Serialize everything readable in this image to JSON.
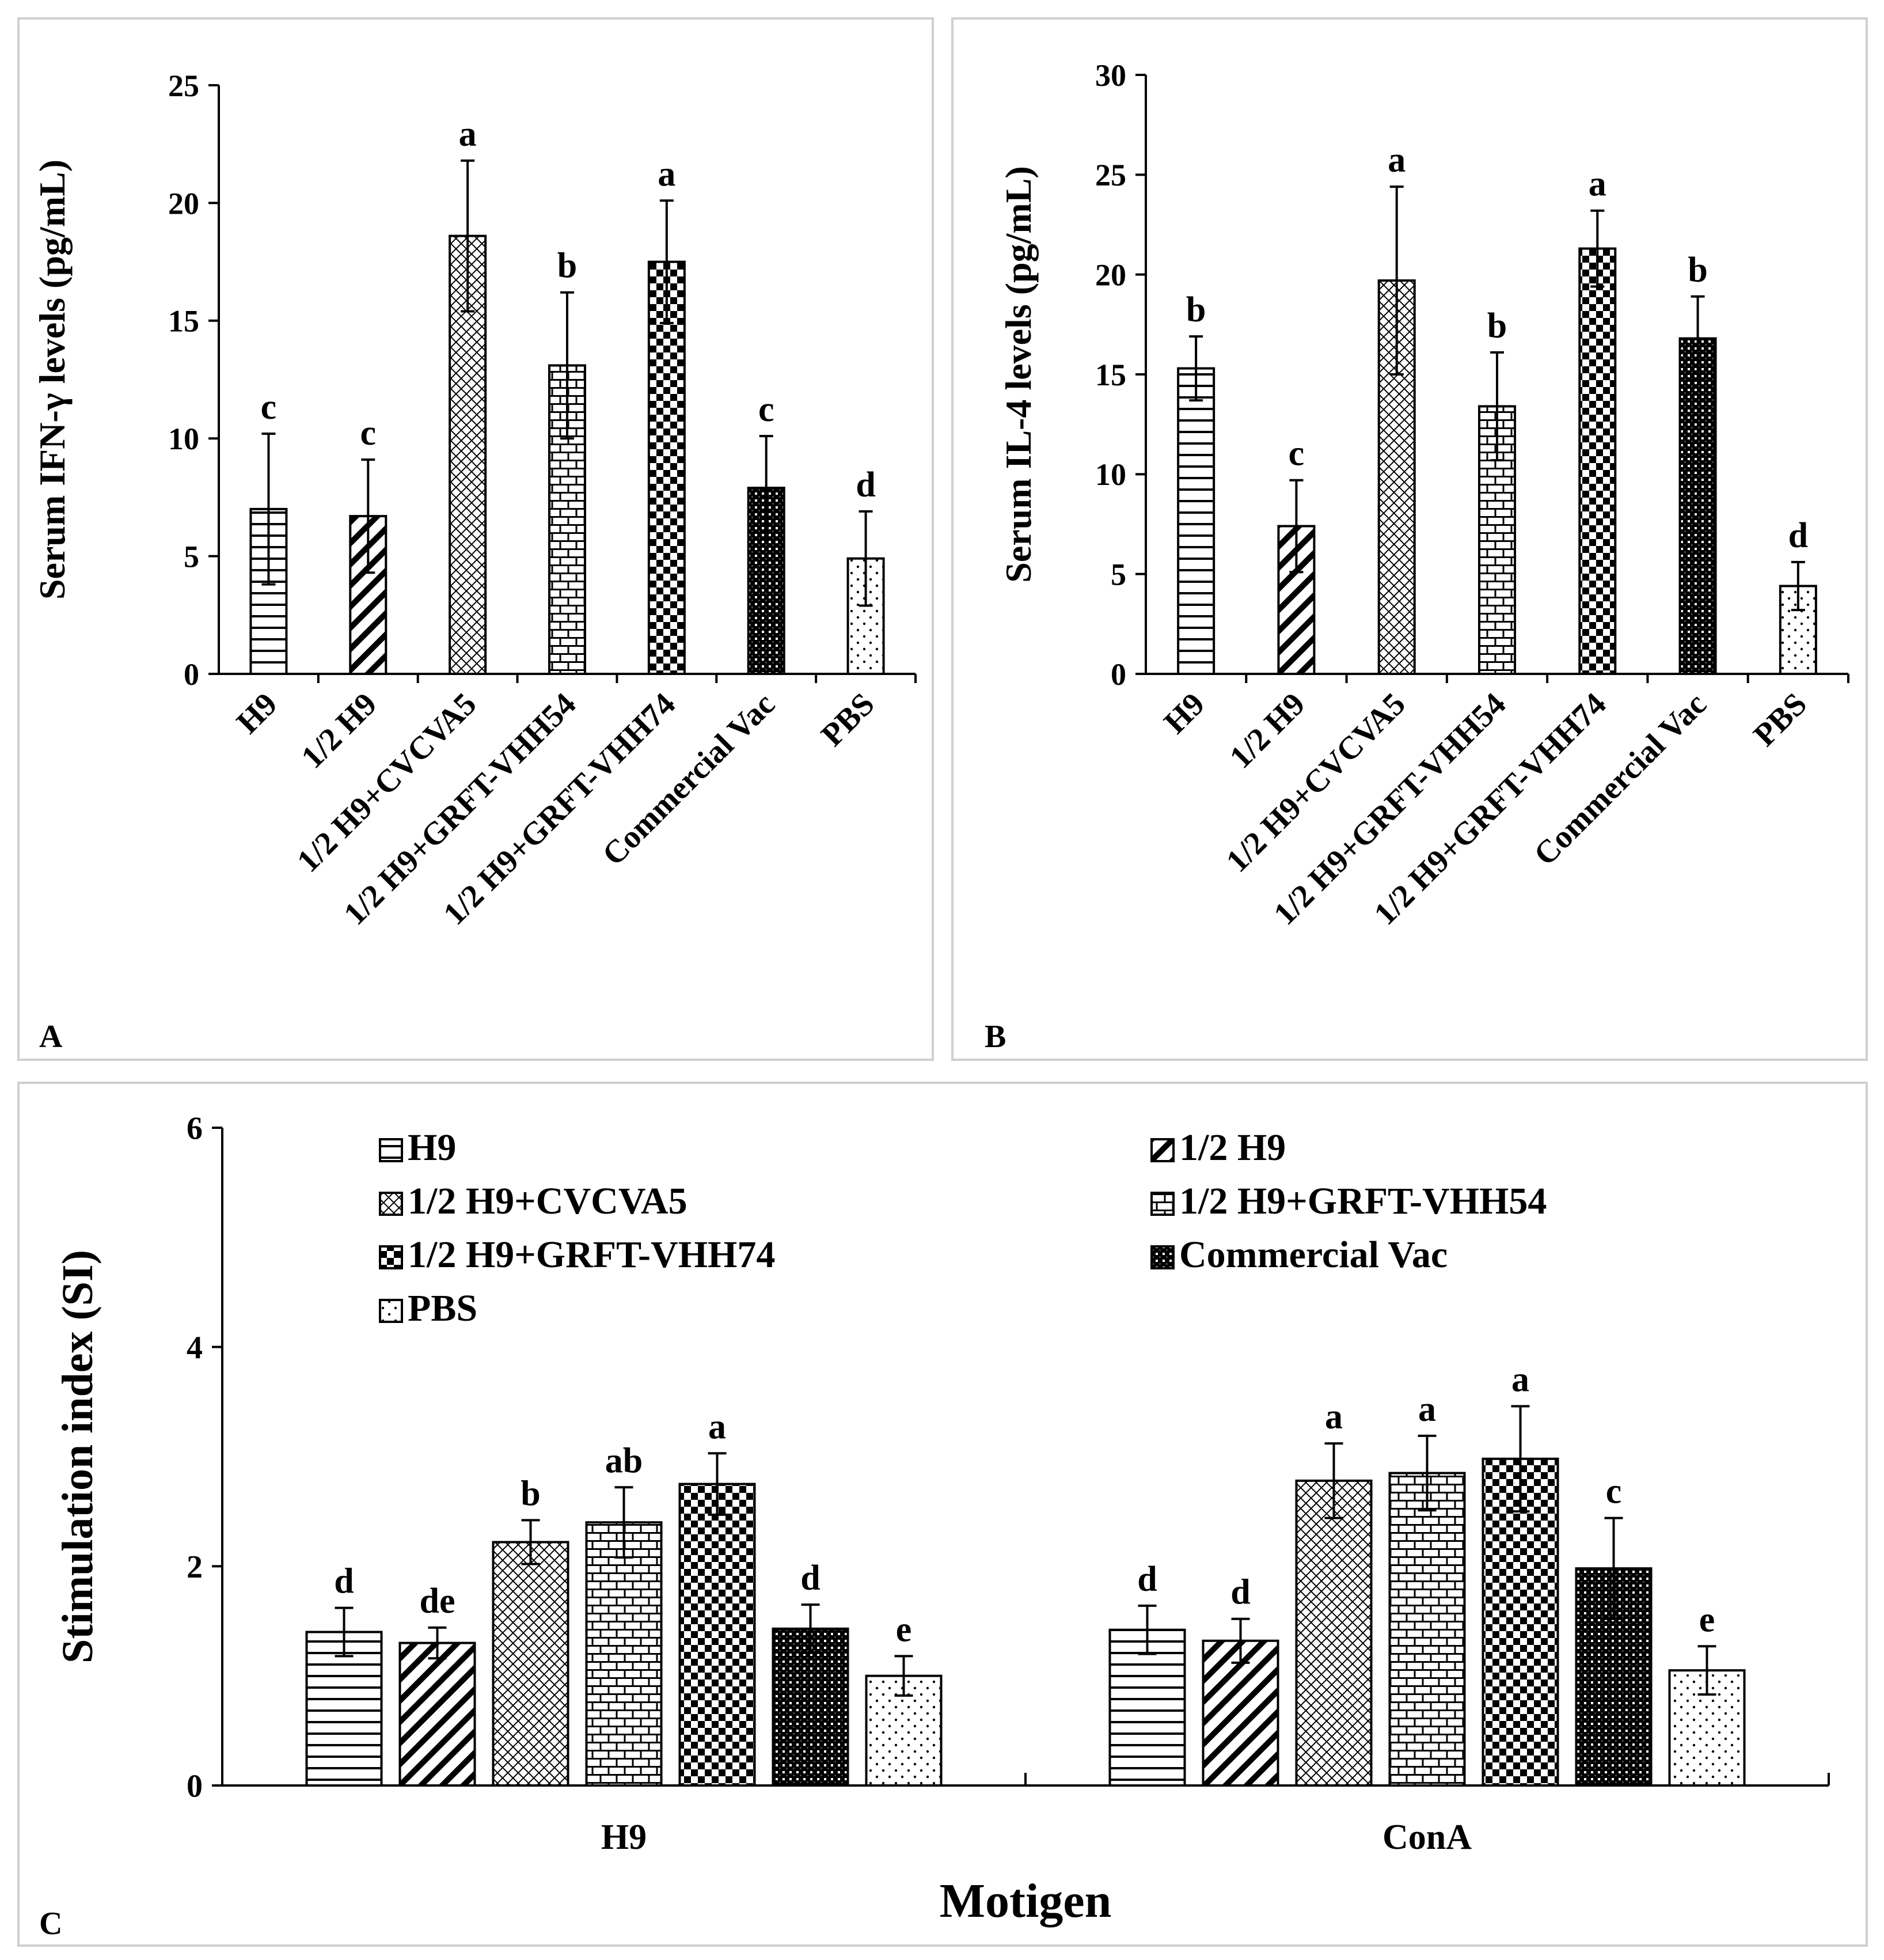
{
  "figure": {
    "panel_labels": [
      "A",
      "B",
      "C"
    ]
  },
  "patterns": {
    "H9": "hlines",
    "1/2 H9": "diag",
    "1/2 H9+CVCVA5": "cross",
    "1/2 H9+GRFT-VHH54": "brick",
    "1/2 H9+GRFT-VHH74": "checker",
    "Commercial Vac": "dense",
    "PBS": "dots"
  },
  "chart_data": [
    {
      "panel": "A",
      "type": "bar",
      "ylabel": "Serum IFN-γ levels (pg/mL)",
      "xlabel": "",
      "ylim": [
        0,
        25
      ],
      "yticks": [
        0,
        5,
        10,
        15,
        20,
        25
      ],
      "yticklabels": [
        "0",
        "5",
        "10",
        "15",
        "20",
        "25"
      ],
      "categories": [
        "H9",
        "1/2 H9",
        "1/2 H9+CVCVA5",
        "1/2 H9+GRFT-VHH54",
        "1/2 H9+GRFT-VHH74",
        "Commercial Vac",
        "PBS"
      ],
      "values": [
        7.0,
        6.7,
        18.6,
        13.1,
        17.5,
        7.9,
        4.9
      ],
      "errors": [
        3.2,
        2.4,
        3.2,
        3.1,
        2.6,
        2.2,
        2.0
      ],
      "significance": [
        "c",
        "c",
        "a",
        "b",
        "a",
        "c",
        "d"
      ]
    },
    {
      "panel": "B",
      "type": "bar",
      "ylabel": "Serum IL-4 levels (pg/mL)",
      "xlabel": "",
      "ylim": [
        0,
        30
      ],
      "yticks": [
        0,
        5,
        10,
        15,
        20,
        25,
        30
      ],
      "yticklabels": [
        "0",
        "5",
        "10",
        "15",
        "20",
        "25",
        "30"
      ],
      "categories": [
        "H9",
        "1/2 H9",
        "1/2 H9+CVCVA5",
        "1/2 H9+GRFT-VHH54",
        "1/2 H9+GRFT-VHH74",
        "Commercial Vac",
        "PBS"
      ],
      "values": [
        15.3,
        7.4,
        19.7,
        13.4,
        21.3,
        16.8,
        4.4
      ],
      "errors": [
        1.6,
        2.3,
        4.7,
        2.7,
        1.9,
        2.1,
        1.2
      ],
      "significance": [
        "b",
        "c",
        "a",
        "b",
        "a",
        "b",
        "d"
      ]
    },
    {
      "panel": "C",
      "type": "bar",
      "ylabel": "Stimulation index (SI)",
      "xlabel": "Motigen",
      "ylim": [
        0,
        6
      ],
      "yticks": [
        0,
        2,
        4,
        6
      ],
      "yticklabels": [
        "0",
        "2",
        "4",
        "6"
      ],
      "categories": [
        "H9",
        "ConA"
      ],
      "legend_position": "top",
      "series": [
        {
          "name": "H9",
          "values": [
            1.4,
            1.42
          ],
          "errors": [
            0.22,
            0.22
          ],
          "significance": [
            "d",
            "d"
          ]
        },
        {
          "name": "1/2 H9",
          "values": [
            1.3,
            1.32
          ],
          "errors": [
            0.14,
            0.2
          ],
          "significance": [
            "de",
            "d"
          ]
        },
        {
          "name": "1/2 H9+CVCVA5",
          "values": [
            2.22,
            2.78
          ],
          "errors": [
            0.2,
            0.34
          ],
          "significance": [
            "b",
            "a"
          ]
        },
        {
          "name": "1/2 H9+GRFT-VHH54",
          "values": [
            2.4,
            2.85
          ],
          "errors": [
            0.32,
            0.34
          ],
          "significance": [
            "ab",
            "a"
          ]
        },
        {
          "name": "1/2 H9+GRFT-VHH74",
          "values": [
            2.75,
            2.98
          ],
          "errors": [
            0.28,
            0.48
          ],
          "significance": [
            "a",
            "a"
          ]
        },
        {
          "name": "Commercial Vac",
          "values": [
            1.43,
            1.98
          ],
          "errors": [
            0.22,
            0.46
          ],
          "significance": [
            "d",
            "c"
          ]
        },
        {
          "name": "PBS",
          "values": [
            1.0,
            1.05
          ],
          "errors": [
            0.18,
            0.22
          ],
          "significance": [
            "e",
            "e"
          ]
        }
      ]
    }
  ]
}
